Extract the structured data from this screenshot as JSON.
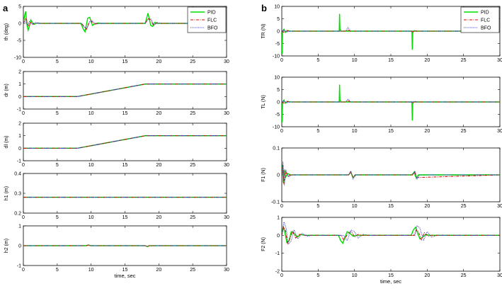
{
  "figure": {
    "panel_a_label": "a",
    "panel_b_label": "b"
  },
  "legend": [
    {
      "name": "PID",
      "color": "#00dd00",
      "dash": "solid"
    },
    {
      "name": "FLC",
      "color": "#dd0000",
      "dash": "dashdot"
    },
    {
      "name": "BFO",
      "color": "#3333cc",
      "dash": "dotted"
    }
  ],
  "chart_data": [
    {
      "id": "th",
      "type": "line",
      "column": "a",
      "ylabel": "th (deg)",
      "xlabel": "",
      "xlim": [
        0,
        30
      ],
      "ylim": [
        -10,
        5
      ],
      "xticks": [
        0,
        5,
        10,
        15,
        20,
        25,
        30
      ],
      "yticks": [
        -10,
        -5,
        0,
        5
      ],
      "xtick_labels": [
        "0",
        "5",
        "10",
        "15",
        "20",
        "25",
        "30"
      ],
      "ytick_labels": [
        "-10",
        "-5",
        "0",
        "5"
      ],
      "series": [
        {
          "name": "PID",
          "x": [
            0,
            0.2,
            0.35,
            0.5,
            0.7,
            0.9,
            1.1,
            1.3,
            1.6,
            2,
            2.5,
            3,
            8.5,
            8.8,
            9.1,
            9.3,
            9.5,
            9.8,
            10,
            10.2,
            10.5,
            11,
            11.5,
            18,
            18.2,
            18.4,
            18.6,
            18.8,
            19.1,
            19.4,
            19.8,
            20.5,
            30
          ],
          "y": [
            0,
            2.5,
            3.5,
            0,
            -2,
            -0.8,
            1,
            0.3,
            -0.3,
            0.1,
            0,
            0,
            0,
            -1.5,
            -2.5,
            -0.5,
            1.5,
            1.8,
            0.5,
            -0.6,
            -0.2,
            0.1,
            0,
            0,
            1.5,
            3,
            1.2,
            -0.6,
            -0.9,
            0.3,
            0,
            0,
            0
          ]
        },
        {
          "name": "FLC",
          "x": [
            0,
            0.3,
            0.5,
            0.8,
            1.1,
            1.4,
            1.8,
            2.3,
            3,
            8.6,
            9,
            9.3,
            9.7,
            10,
            10.4,
            11,
            18,
            18.4,
            18.8,
            19.2,
            19.7,
            20.3,
            30
          ],
          "y": [
            0,
            1.5,
            1,
            -1,
            0.5,
            -0.3,
            0.2,
            0,
            0,
            0,
            -1.2,
            -1.8,
            0.3,
            0.8,
            -0.2,
            0,
            0,
            1.5,
            1,
            -0.6,
            0.2,
            0,
            0
          ]
        },
        {
          "name": "BFO",
          "x": [
            0,
            0.3,
            0.6,
            0.9,
            1.3,
            1.7,
            2.2,
            3,
            8.6,
            9,
            9.4,
            9.8,
            10.2,
            10.7,
            11.5,
            18,
            18.4,
            18.8,
            19.3,
            19.8,
            20.5,
            30
          ],
          "y": [
            0,
            0.8,
            -0.6,
            0.5,
            -0.3,
            0.2,
            0,
            0,
            0,
            -1,
            -1.5,
            0.5,
            0.7,
            -0.2,
            0,
            0,
            1.2,
            1.4,
            -0.5,
            0.2,
            0,
            0
          ]
        }
      ]
    },
    {
      "id": "dr",
      "type": "line",
      "column": "a",
      "ylabel": "dr (m)",
      "xlabel": "",
      "xlim": [
        0,
        30
      ],
      "ylim": [
        -1,
        2
      ],
      "xticks": [
        0,
        5,
        10,
        15,
        20,
        25,
        30
      ],
      "yticks": [
        -1,
        0,
        1,
        2
      ],
      "xtick_labels": [
        "0",
        "5",
        "10",
        "15",
        "20",
        "25",
        "30"
      ],
      "ytick_labels": [
        "-1",
        "0",
        "1",
        "2"
      ],
      "series": [
        {
          "name": "PID",
          "x": [
            0,
            8,
            18,
            30
          ],
          "y": [
            0,
            0,
            1,
            1
          ]
        },
        {
          "name": "FLC",
          "x": [
            0,
            8,
            18,
            30
          ],
          "y": [
            0,
            0,
            1,
            1
          ]
        },
        {
          "name": "BFO",
          "x": [
            0,
            8,
            18,
            30
          ],
          "y": [
            0,
            0,
            1,
            1
          ]
        }
      ]
    },
    {
      "id": "dl",
      "type": "line",
      "column": "a",
      "ylabel": "dl (m)",
      "xlabel": "",
      "xlim": [
        0,
        30
      ],
      "ylim": [
        -1,
        2
      ],
      "xticks": [
        0,
        5,
        10,
        15,
        20,
        25,
        30
      ],
      "yticks": [
        -1,
        0,
        1,
        2
      ],
      "xtick_labels": [
        "0",
        "5",
        "10",
        "15",
        "20",
        "25",
        "30"
      ],
      "ytick_labels": [
        "-1",
        "0",
        "1",
        "2"
      ],
      "series": [
        {
          "name": "PID",
          "x": [
            0,
            8,
            18,
            30
          ],
          "y": [
            0,
            0,
            1,
            1
          ]
        },
        {
          "name": "FLC",
          "x": [
            0,
            8,
            18,
            30
          ],
          "y": [
            0,
            0,
            1,
            1
          ]
        },
        {
          "name": "BFO",
          "x": [
            0,
            8,
            18,
            30
          ],
          "y": [
            0,
            0,
            1,
            1
          ]
        }
      ]
    },
    {
      "id": "h1",
      "type": "line",
      "column": "a",
      "ylabel": "h1 (m)",
      "xlabel": "",
      "xlim": [
        0,
        30
      ],
      "ylim": [
        0.2,
        0.4
      ],
      "xticks": [
        0,
        5,
        10,
        15,
        20,
        25,
        30
      ],
      "yticks": [
        0.2,
        0.3,
        0.4
      ],
      "xtick_labels": [
        "0",
        "5",
        "10",
        "15",
        "20",
        "25",
        "30"
      ],
      "ytick_labels": [
        "0.2",
        "0.3",
        "0.4"
      ],
      "series": [
        {
          "name": "PID",
          "x": [
            0,
            30
          ],
          "y": [
            0.28,
            0.28
          ]
        },
        {
          "name": "FLC",
          "x": [
            0,
            30
          ],
          "y": [
            0.28,
            0.28
          ]
        },
        {
          "name": "BFO",
          "x": [
            0,
            30
          ],
          "y": [
            0.28,
            0.28
          ]
        }
      ]
    },
    {
      "id": "h2",
      "type": "line",
      "column": "a",
      "ylabel": "h2 (m)",
      "xlabel": "time, sec",
      "xlim": [
        0,
        30
      ],
      "ylim": [
        -1,
        1
      ],
      "xticks": [
        0,
        5,
        10,
        15,
        20,
        25,
        30
      ],
      "yticks": [
        -1,
        0,
        1
      ],
      "xtick_labels": [
        "0",
        "5",
        "10",
        "15",
        "20",
        "25",
        "30"
      ],
      "ytick_labels": [
        "-1",
        "0",
        "1"
      ],
      "series": [
        {
          "name": "PID",
          "x": [
            0,
            9.3,
            9.6,
            9.9,
            18,
            18.3,
            18.6,
            30
          ],
          "y": [
            0,
            0,
            0.04,
            0,
            0,
            -0.05,
            0,
            0
          ]
        },
        {
          "name": "FLC",
          "x": [
            0,
            9.3,
            9.6,
            9.9,
            18,
            18.3,
            18.6,
            30
          ],
          "y": [
            0,
            0,
            0.03,
            0,
            0,
            -0.04,
            0,
            0
          ]
        },
        {
          "name": "BFO",
          "x": [
            0,
            9.3,
            9.6,
            9.9,
            18,
            18.3,
            18.6,
            30
          ],
          "y": [
            0,
            0,
            0.02,
            0,
            0,
            -0.03,
            0,
            0
          ]
        }
      ]
    },
    {
      "id": "TR",
      "type": "line",
      "column": "b",
      "ylabel": "TR (N)",
      "xlabel": "",
      "xlim": [
        0,
        30
      ],
      "ylim": [
        -10,
        10
      ],
      "xticks": [
        0,
        5,
        10,
        15,
        20,
        25,
        30
      ],
      "yticks": [
        -10,
        -5,
        0,
        5,
        10
      ],
      "xtick_labels": [
        "0",
        "5",
        "10",
        "15",
        "20",
        "25",
        "30"
      ],
      "ytick_labels": [
        "-10",
        "-5",
        "0",
        "5",
        "10"
      ],
      "series": [
        {
          "name": "PID",
          "x": [
            0,
            0.05,
            0.1,
            0.3,
            0.5,
            0.8,
            1.2,
            7.9,
            7.95,
            8.0,
            8.1,
            17.9,
            17.95,
            18.0,
            18.1,
            30
          ],
          "y": [
            -9,
            -9,
            0,
            0.8,
            -0.5,
            0.2,
            0,
            0,
            7,
            1,
            0,
            0,
            -7.5,
            -1,
            0,
            0
          ]
        },
        {
          "name": "FLC",
          "x": [
            0,
            0.3,
            0.6,
            1,
            8.8,
            9.1,
            9.4,
            17.9,
            18,
            18.3,
            30
          ],
          "y": [
            0,
            -0.5,
            0.3,
            0,
            0,
            0.5,
            0,
            0,
            -0.4,
            0,
            0
          ]
        },
        {
          "name": "BFO",
          "x": [
            0,
            0.3,
            0.7,
            1.2,
            8.8,
            9.1,
            9.5,
            18,
            18.3,
            18.6,
            30
          ],
          "y": [
            0,
            0.4,
            -0.3,
            0,
            0,
            1.5,
            0,
            0,
            0.3,
            0,
            0
          ]
        }
      ]
    },
    {
      "id": "TL",
      "type": "line",
      "column": "b",
      "ylabel": "TL (N)",
      "xlabel": "",
      "xlim": [
        0,
        30
      ],
      "ylim": [
        -10,
        10
      ],
      "xticks": [
        0,
        5,
        10,
        15,
        20,
        25,
        30
      ],
      "yticks": [
        -10,
        -5,
        0,
        5,
        10
      ],
      "xtick_labels": [
        "0",
        "5",
        "10",
        "15",
        "20",
        "25",
        "30"
      ],
      "ytick_labels": [
        "-10",
        "-5",
        "0",
        "5",
        "10"
      ],
      "series": [
        {
          "name": "PID",
          "x": [
            0,
            0.05,
            0.1,
            0.3,
            0.5,
            0.8,
            1.2,
            7.9,
            7.95,
            8.0,
            8.1,
            17.9,
            17.95,
            18.0,
            18.1,
            30
          ],
          "y": [
            -8,
            -8,
            0,
            0.8,
            -0.5,
            0.2,
            0,
            0,
            7,
            1,
            0,
            0,
            -7.5,
            -1,
            0,
            0
          ]
        },
        {
          "name": "FLC",
          "x": [
            0,
            0.3,
            0.6,
            1,
            8.8,
            9.1,
            9.4,
            17.9,
            18,
            18.3,
            30
          ],
          "y": [
            0,
            -0.5,
            0.3,
            0,
            0,
            0.6,
            0,
            0,
            -0.4,
            0,
            0
          ]
        },
        {
          "name": "BFO",
          "x": [
            0,
            0.3,
            0.7,
            1.2,
            8.8,
            9.1,
            9.5,
            18,
            18.3,
            18.6,
            30
          ],
          "y": [
            0,
            0.4,
            -0.3,
            0,
            0,
            1.2,
            0,
            0,
            0.3,
            0,
            0
          ]
        }
      ]
    },
    {
      "id": "F1",
      "type": "line",
      "column": "b",
      "ylabel": "F1 (N)",
      "xlabel": "",
      "xlim": [
        0,
        30
      ],
      "ylim": [
        -0.1,
        0.1
      ],
      "xticks": [
        0,
        5,
        10,
        15,
        20,
        25,
        30
      ],
      "yticks": [
        -0.1,
        0,
        0.1
      ],
      "xtick_labels": [
        "0",
        "5",
        "10",
        "15",
        "20",
        "25",
        "30"
      ],
      "ytick_labels": [
        "-0.1",
        "0",
        "0.1"
      ],
      "series": [
        {
          "name": "PID",
          "x": [
            0,
            0.1,
            0.2,
            0.35,
            0.5,
            0.8,
            1.2,
            9.2,
            9.5,
            9.8,
            10.1,
            17.9,
            18.2,
            18.5,
            18.8,
            30
          ],
          "y": [
            0,
            0.035,
            -0.03,
            0.02,
            -0.01,
            0.005,
            0,
            0,
            0.01,
            -0.01,
            0,
            0,
            0.01,
            -0.012,
            0,
            0
          ]
        },
        {
          "name": "FLC",
          "x": [
            0,
            0.15,
            0.3,
            0.5,
            0.8,
            1.2,
            9.2,
            9.5,
            9.8,
            10.1,
            18,
            18.3,
            18.6,
            30
          ],
          "y": [
            0,
            0.04,
            -0.035,
            0.015,
            -0.005,
            0,
            0,
            0.012,
            -0.012,
            0,
            0,
            0.01,
            -0.01,
            0
          ]
        },
        {
          "name": "BFO",
          "x": [
            0,
            0.15,
            0.35,
            0.55,
            0.9,
            1.4,
            9.2,
            9.5,
            9.8,
            10.2,
            18,
            18.3,
            18.6,
            19,
            30
          ],
          "y": [
            0,
            0.05,
            -0.04,
            0.02,
            -0.008,
            0,
            0,
            0.015,
            -0.015,
            0,
            0,
            0.015,
            -0.015,
            0,
            0
          ]
        }
      ]
    },
    {
      "id": "F2",
      "type": "line",
      "column": "b",
      "ylabel": "F2 (N)",
      "xlabel": "time, sec",
      "xlim": [
        0,
        30
      ],
      "ylim": [
        -2,
        1
      ],
      "xticks": [
        0,
        5,
        10,
        15,
        20,
        25,
        30
      ],
      "yticks": [
        -2,
        -1,
        0,
        1
      ],
      "xtick_labels": [
        "0",
        "5",
        "10",
        "15",
        "20",
        "25",
        "30"
      ],
      "ytick_labels": [
        "-2",
        "-1",
        "0",
        "1"
      ],
      "series": [
        {
          "name": "PID",
          "x": [
            0,
            0.2,
            0.4,
            0.7,
            1,
            1.3,
            1.7,
            2.1,
            2.6,
            3.2,
            7.8,
            8.1,
            8.4,
            8.7,
            9,
            9.4,
            9.8,
            10.3,
            17.8,
            18.1,
            18.4,
            18.7,
            19,
            19.4,
            19.8,
            20.3,
            30
          ],
          "y": [
            0,
            0.5,
            0.2,
            -0.4,
            -0.3,
            0.2,
            0.1,
            -0.1,
            0.05,
            0,
            0,
            -0.3,
            -0.45,
            -0.1,
            0.2,
            0.1,
            -0.05,
            0,
            0,
            0.3,
            0.45,
            0.1,
            -0.2,
            -0.1,
            0.05,
            0,
            0
          ]
        },
        {
          "name": "FLC",
          "x": [
            0,
            0.25,
            0.5,
            0.8,
            1.1,
            1.5,
            1.9,
            2.4,
            3,
            8.2,
            8.5,
            8.8,
            9.2,
            9.6,
            10,
            10.5,
            11,
            18.2,
            18.5,
            18.8,
            19.2,
            19.6,
            20.1,
            20.6,
            30
          ],
          "y": [
            0,
            0.45,
            0.3,
            -0.45,
            -0.2,
            0.25,
            -0.15,
            0.05,
            0,
            0,
            -0.25,
            -0.1,
            0.15,
            0.2,
            -0.1,
            0.05,
            0,
            0,
            0.3,
            0.2,
            -0.25,
            0.15,
            -0.05,
            0,
            0
          ]
        },
        {
          "name": "BFO",
          "x": [
            0,
            0.3,
            0.6,
            0.9,
            1.3,
            1.7,
            2.2,
            2.8,
            3.5,
            4.2,
            8.5,
            9,
            9.5,
            10,
            10.5,
            11.2,
            12,
            18.3,
            18.6,
            19,
            19.5,
            20,
            20.6,
            21.4,
            30
          ],
          "y": [
            0,
            0.75,
            0.4,
            -0.5,
            -0.3,
            0.3,
            -0.2,
            0.1,
            -0.05,
            0,
            0,
            -0.3,
            0.3,
            0.2,
            -0.15,
            0.05,
            0,
            0,
            0.55,
            0.4,
            -0.3,
            0.2,
            -0.1,
            0,
            0
          ]
        }
      ]
    }
  ]
}
